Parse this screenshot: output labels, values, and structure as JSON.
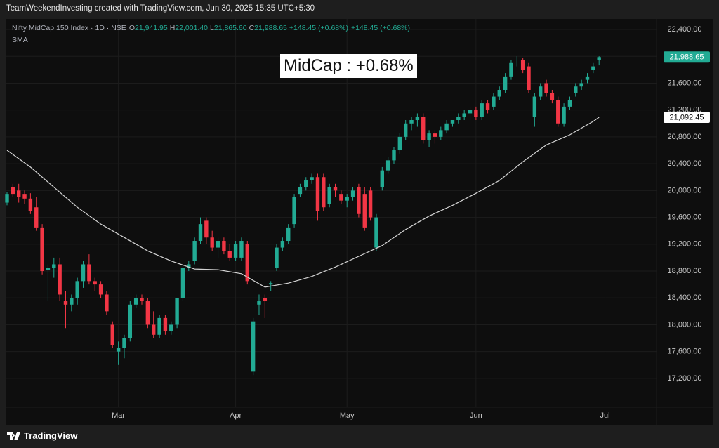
{
  "header": "TeamWeekendInvesting created with TradingView.com, Jun 30, 2025 15:35 UTC+5:30",
  "footer": "TradingView",
  "chart_data": {
    "type": "candlestick",
    "symbol": "Nifty MidCap 150 Index · 1D · NSE",
    "ohlc_legend": [
      {
        "key": "O",
        "value": {
          "value": 21941.95,
          "label": "21,941.95"
        }
      },
      {
        "key": "H",
        "value": {
          "value": 22001.4,
          "label": "22,001.40"
        }
      },
      {
        "key": "L",
        "value": {
          "value": 21865.6,
          "label": "21,865.60"
        }
      },
      {
        "key": "C",
        "value": {
          "value": 21988.65,
          "label": "21,988.65"
        }
      }
    ],
    "change_labels": [
      "+148.45 (+0.68%)",
      "+148.45 (+0.68%)"
    ],
    "annotation": "MidCap : +0.68%",
    "up_color": "#22ab94",
    "down_color": "#f23645",
    "grid": true,
    "xlim": [
      -0.24,
      110.8
    ],
    "xticks": [
      {
        "value": 19,
        "label": "Mar"
      },
      {
        "value": 39,
        "label": "Apr"
      },
      {
        "value": 58,
        "label": "May"
      },
      {
        "value": 80,
        "label": "Jun"
      },
      {
        "value": 102,
        "label": "Jul"
      }
    ],
    "ylim": [
      16770,
      22557
    ],
    "yticks": [
      {
        "value": 17200,
        "label": "17,200.00"
      },
      {
        "value": 17600,
        "label": "17,600.00"
      },
      {
        "value": 18000,
        "label": "18,000.00"
      },
      {
        "value": 18400,
        "label": "18,400.00"
      },
      {
        "value": 18800,
        "label": "18,800.00"
      },
      {
        "value": 19200,
        "label": "19,200.00"
      },
      {
        "value": 19600,
        "label": "19,600.00"
      },
      {
        "value": 20000,
        "label": "20,000.00"
      },
      {
        "value": 20400,
        "label": "20,400.00"
      },
      {
        "value": 20800,
        "label": "20,800.00"
      },
      {
        "value": 21200,
        "label": "21,200.00"
      },
      {
        "value": 21600,
        "label": "21,600.00"
      },
      {
        "value": 22000,
        "label": "22,000.00"
      },
      {
        "value": 22400,
        "label": "22,400.00"
      }
    ],
    "open": [
      19820,
      20050,
      20000,
      19950,
      19880,
      19750,
      19450,
      18820,
      18850,
      18900,
      18350,
      18300,
      18400,
      18650,
      18900,
      18650,
      18600,
      18450,
      18000,
      17600,
      17650,
      17800,
      18300,
      18400,
      18350,
      18000,
      17850,
      18100,
      17900,
      18000,
      18400,
      18850,
      18950,
      19250,
      19550,
      19300,
      19150,
      19250,
      19100,
      19000,
      19000,
      19200,
      17300,
      18300,
      18400,
      18600,
      18850,
      19150,
      19250,
      19500,
      19950,
      20050,
      20150,
      20200,
      20200,
      19800,
      20050,
      19950,
      19850,
      19900,
      20050,
      19950,
      20000,
      19150,
      20050,
      20300,
      20450,
      20600,
      20800,
      21000,
      21050,
      21100,
      20750,
      20850,
      20800,
      20900,
      21000,
      21050,
      21100,
      21150,
      21200,
      21100,
      21300,
      21250,
      21400,
      21500,
      21700,
      21950,
      21950,
      21850,
      21100,
      21400,
      21600,
      21450,
      21350,
      21000,
      21250,
      21450,
      21550,
      21650,
      21800,
      21941.95
    ],
    "high": [
      19980,
      20100,
      20100,
      20000,
      19960,
      19900,
      19500,
      18900,
      19000,
      19000,
      18500,
      18450,
      18700,
      18950,
      19050,
      18700,
      18650,
      18500,
      18050,
      17750,
      17850,
      18350,
      18450,
      18450,
      18400,
      18200,
      18150,
      18150,
      18050,
      18400,
      18900,
      18950,
      19300,
      19600,
      19600,
      19400,
      19300,
      19300,
      19200,
      19250,
      19300,
      19250,
      18100,
      18450,
      18450,
      18650,
      19200,
      19300,
      19500,
      19950,
      20100,
      20200,
      20250,
      20250,
      20250,
      20100,
      20100,
      20000,
      19950,
      20050,
      20100,
      20050,
      20050,
      19650,
      20350,
      20500,
      20650,
      20850,
      21050,
      21100,
      21150,
      21150,
      20900,
      20900,
      20950,
      21050,
      21050,
      21150,
      21200,
      21250,
      21250,
      21350,
      21350,
      21450,
      21550,
      21750,
      21950,
      22000,
      21980,
      21900,
      21450,
      21600,
      21650,
      21500,
      21400,
      21300,
      21400,
      21600,
      21650,
      21750,
      21900,
      22001.4
    ],
    "low": [
      19780,
      19900,
      19820,
      19800,
      19650,
      19400,
      18750,
      18350,
      18700,
      18350,
      17950,
      18200,
      18300,
      18550,
      18600,
      18500,
      18400,
      18150,
      17650,
      17400,
      17500,
      17750,
      18250,
      18300,
      17950,
      17800,
      17800,
      17850,
      17850,
      17950,
      18350,
      18800,
      18900,
      19200,
      19200,
      19100,
      19000,
      19050,
      18950,
      18950,
      18950,
      18600,
      17250,
      18150,
      18100,
      18500,
      18800,
      19100,
      19200,
      19450,
      19900,
      20000,
      20100,
      19550,
      19700,
      19750,
      19900,
      19800,
      19750,
      19850,
      19600,
      19400,
      19550,
      19100,
      20000,
      20250,
      20400,
      20550,
      20750,
      20900,
      20950,
      20700,
      20650,
      20700,
      20750,
      20850,
      20950,
      21000,
      21050,
      21050,
      21050,
      21050,
      21150,
      21200,
      21350,
      21450,
      21650,
      21850,
      21750,
      21450,
      20950,
      21350,
      21400,
      21300,
      20950,
      20950,
      21200,
      21400,
      21500,
      21600,
      21750,
      21865.6
    ],
    "close": [
      19950,
      19950,
      19900,
      19880,
      19700,
      19450,
      18800,
      18850,
      18900,
      18450,
      18300,
      18400,
      18650,
      18900,
      18650,
      18600,
      18450,
      18200,
      17700,
      17650,
      17800,
      18300,
      18400,
      18350,
      18000,
      17850,
      18100,
      17900,
      18000,
      18400,
      18850,
      18900,
      19250,
      19500,
      19300,
      19150,
      19250,
      19100,
      19000,
      19200,
      19250,
      18650,
      18050,
      18350,
      18350,
      18620,
      19150,
      19250,
      19450,
      19900,
      20050,
      20150,
      20200,
      19700,
      19750,
      20050,
      20000,
      19850,
      19900,
      20000,
      19650,
      19450,
      19600,
      19600,
      20300,
      20450,
      20600,
      20800,
      21000,
      21050,
      21100,
      20750,
      20850,
      20800,
      20900,
      21000,
      21050,
      21100,
      21150,
      21200,
      21100,
      21300,
      21200,
      21400,
      21500,
      21700,
      21900,
      21950,
      21800,
      21500,
      21400,
      21550,
      21450,
      21350,
      21000,
      21250,
      21350,
      21550,
      21600,
      21700,
      21850,
      21988.65
    ],
    "sma": {
      "name": "SMA",
      "color": "#d4d4d4",
      "x": [
        0,
        4,
        8,
        12,
        16,
        20,
        24,
        28,
        32,
        36,
        40,
        44,
        48,
        52,
        56,
        60,
        64,
        68,
        72,
        76,
        80,
        84,
        88,
        92,
        96,
        100,
        101
      ],
      "values": [
        20600,
        20350,
        20050,
        19750,
        19500,
        19300,
        19100,
        18950,
        18830,
        18820,
        18760,
        18560,
        18620,
        18720,
        18860,
        19020,
        19180,
        19420,
        19620,
        19780,
        19960,
        20150,
        20430,
        20680,
        20830,
        21030,
        21092.45
      ]
    },
    "price_labels": [
      {
        "value": 21988.65,
        "label": "21,988.65",
        "color": "#22ab94",
        "text_color": "#ffffff"
      },
      {
        "value": 21092.45,
        "label": "21,092.45",
        "color": "#ffffff",
        "text_color": "#000000"
      }
    ]
  }
}
